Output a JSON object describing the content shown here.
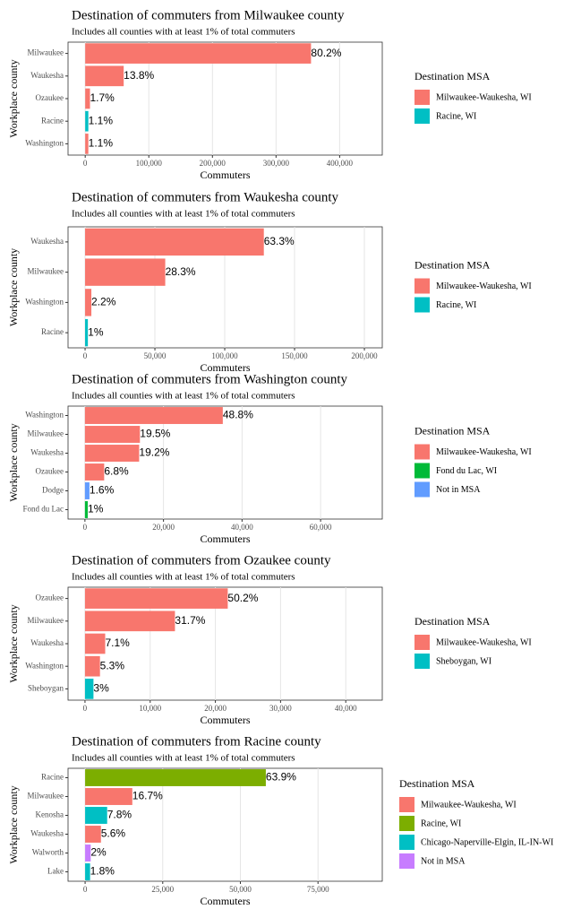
{
  "chart_data": [
    {
      "type": "bar",
      "orientation": "horizontal",
      "title": "Destination of commuters from Milwaukee county",
      "subtitle": "Includes all counties with at least 1% of total commuters",
      "x_label": "Commuters",
      "y_label": "Workplace county",
      "legend_title": "Destination MSA",
      "categories": [
        "Milwaukee",
        "Waukesha",
        "Ozaukee",
        "Racine",
        "Washington"
      ],
      "series": [
        {
          "name": "Milwaukee-Waukesha, WI",
          "color": "#F8766D",
          "values": [
            355000,
            60500,
            7500,
            null,
            4900
          ],
          "share_labels": [
            "80.2%",
            "13.8%",
            "1.7%",
            null,
            "1.1%"
          ]
        },
        {
          "name": "Racine, WI",
          "color": "#00BFC4",
          "values": [
            null,
            null,
            null,
            4900,
            null
          ],
          "share_labels": [
            null,
            null,
            null,
            "1.1%",
            null
          ]
        }
      ],
      "xlim": [
        -27000,
        467000
      ],
      "xticks": [
        0,
        {
          "value": 100000,
          "label": "100,000"
        },
        {
          "value": 200000,
          "label": "200,000"
        },
        {
          "value": 300000,
          "label": "300,000"
        },
        {
          "value": 400000,
          "label": "400,000"
        }
      ],
      "grid": true
    },
    {
      "type": "bar",
      "orientation": "horizontal",
      "title": "Destination of commuters from Waukesha county",
      "subtitle": "Includes all counties with at least 1% of total commuters",
      "x_label": "Commuters",
      "y_label": "Workplace county",
      "legend_title": "Destination MSA",
      "categories": [
        "Waukesha",
        "Milwaukee",
        "Washington",
        "Racine"
      ],
      "series": [
        {
          "name": "Milwaukee-Waukesha, WI",
          "color": "#F8766D",
          "values": [
            128000,
            57400,
            4500,
            null
          ],
          "share_labels": [
            "63.3%",
            "28.3%",
            "2.2%",
            null
          ]
        },
        {
          "name": "Racine, WI",
          "color": "#00BFC4",
          "values": [
            null,
            null,
            null,
            2000
          ],
          "share_labels": [
            null,
            null,
            null,
            "1%"
          ]
        }
      ],
      "xlim": [
        -12200,
        212800
      ],
      "xticks": [
        0,
        {
          "value": 50000,
          "label": "50,000"
        },
        {
          "value": 100000,
          "label": "100,000"
        },
        {
          "value": 150000,
          "label": "150,000"
        },
        {
          "value": 200000,
          "label": "200,000"
        }
      ],
      "grid": true
    },
    {
      "type": "bar",
      "orientation": "horizontal",
      "title": "Destination of commuters from Washington county",
      "subtitle": "Includes all counties with at least 1% of total commuters",
      "x_label": "Commuters",
      "y_label": "Workplace county",
      "legend_title": "Destination MSA",
      "categories": [
        "Washington",
        "Milwaukee",
        "Waukesha",
        "Ozaukee",
        "Dodge",
        "Fond du Lac"
      ],
      "series": [
        {
          "name": "Milwaukee-Waukesha, WI",
          "color": "#F8766D",
          "values": [
            35100,
            14000,
            13800,
            4900,
            null,
            null
          ],
          "share_labels": [
            "48.8%",
            "19.5%",
            "19.2%",
            "6.8%",
            null,
            null
          ]
        },
        {
          "name": "Fond du Lac, WI",
          "color": "#00BA38",
          "values": [
            null,
            null,
            null,
            null,
            null,
            720
          ],
          "share_labels": [
            null,
            null,
            null,
            null,
            null,
            "1%"
          ]
        },
        {
          "name": "Not in MSA",
          "color": "#619CFF",
          "values": [
            null,
            null,
            null,
            null,
            1150,
            null
          ],
          "share_labels": [
            null,
            null,
            null,
            null,
            "1.6%",
            null
          ]
        }
      ],
      "xlim": [
        -4300,
        75700
      ],
      "xticks": [
        0,
        {
          "value": 20000,
          "label": "20,000"
        },
        {
          "value": 40000,
          "label": "40,000"
        },
        {
          "value": 60000,
          "label": "60,000"
        }
      ],
      "grid": true
    },
    {
      "type": "bar",
      "orientation": "horizontal",
      "title": "Destination of commuters from Ozaukee county",
      "subtitle": "Includes all counties with at least 1% of total commuters",
      "x_label": "Commuters",
      "y_label": "Workplace county",
      "legend_title": "Destination MSA",
      "categories": [
        "Ozaukee",
        "Milwaukee",
        "Waukesha",
        "Washington",
        "Sheboygan"
      ],
      "series": [
        {
          "name": "Milwaukee-Waukesha, WI",
          "color": "#F8766D",
          "values": [
            21900,
            13800,
            3100,
            2300,
            null
          ],
          "share_labels": [
            "50.2%",
            "31.7%",
            "7.1%",
            "5.3%",
            null
          ]
        },
        {
          "name": "Sheboygan, WI",
          "color": "#00BFC4",
          "values": [
            null,
            null,
            null,
            null,
            1300
          ],
          "share_labels": [
            null,
            null,
            null,
            null,
            "3%"
          ]
        }
      ],
      "xlim": [
        -2600,
        45600
      ],
      "xticks": [
        0,
        {
          "value": 10000,
          "label": "10,000"
        },
        {
          "value": 20000,
          "label": "20,000"
        },
        {
          "value": 30000,
          "label": "30,000"
        },
        {
          "value": 40000,
          "label": "40,000"
        }
      ],
      "grid": true
    },
    {
      "type": "bar",
      "orientation": "horizontal",
      "title": "Destination of commuters from Racine county",
      "subtitle": "Includes all counties with at least 1% of total commuters",
      "x_label": "Commuters",
      "y_label": "Workplace county",
      "legend_title": "Destination MSA",
      "categories": [
        "Racine",
        "Milwaukee",
        "Kenosha",
        "Waukesha",
        "Walworth",
        "Lake"
      ],
      "series": [
        {
          "name": "Milwaukee-Waukesha, WI",
          "color": "#F8766D",
          "values": [
            null,
            15200,
            null,
            5100,
            null,
            null
          ],
          "share_labels": [
            null,
            "16.7%",
            null,
            "5.6%",
            null,
            null
          ]
        },
        {
          "name": "Racine, WI",
          "color": "#7CAE00",
          "values": [
            58200,
            null,
            null,
            null,
            null,
            null
          ],
          "share_labels": [
            "63.9%",
            null,
            null,
            null,
            null,
            null
          ]
        },
        {
          "name": "Chicago-Naperville-Elgin, IL-IN-WI",
          "color": "#00BFC4",
          "values": [
            null,
            null,
            7100,
            null,
            null,
            1600
          ],
          "share_labels": [
            null,
            null,
            "7.8%",
            null,
            null,
            "1.8%"
          ]
        },
        {
          "name": "Not in MSA",
          "color": "#C77CFF",
          "values": [
            null,
            null,
            null,
            null,
            1800,
            null
          ],
          "share_labels": [
            null,
            null,
            null,
            null,
            "2%",
            null
          ]
        }
      ],
      "xlim": [
        -5500,
        95700
      ],
      "xticks": [
        0,
        {
          "value": 25000,
          "label": "25,000"
        },
        {
          "value": 50000,
          "label": "50,000"
        },
        {
          "value": 75000,
          "label": "75,000"
        }
      ],
      "grid": true
    }
  ]
}
